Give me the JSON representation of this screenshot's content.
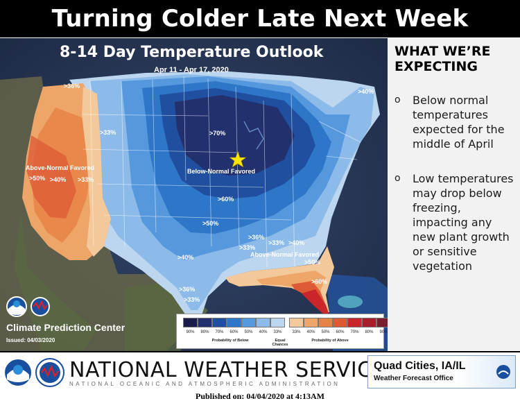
{
  "header": {
    "title": "Turning Colder Late Next Week"
  },
  "map": {
    "title": "8-14 Day Temperature Outlook",
    "date_range": "Apr 11 - Apr 17, 2020",
    "agency": "Climate Prediction Center",
    "issued": "Issued: 04/03/2020",
    "labels": {
      "above_west": "Above-Normal Favored",
      "below_central": "Below-Normal Favored",
      "above_southeast": "Above-Normal Favored",
      "p36_nw": ">36%",
      "p33_west": ">33%",
      "p50_ca": ">50%",
      "p40_ca": ">40%",
      "p33_nv": ">33%",
      "p70": ">70%",
      "p60": ">60%",
      "p50": ">50%",
      "p40_tx": ">40%",
      "p36_tx": ">36%",
      "p33_tx": ">33%",
      "p40_ne": ">40%",
      "p36_se": ">36%",
      "p33_se": ">33%",
      "p33_se2": ">33%",
      "p40_se": ">40%",
      "p50_fl": ">50%",
      "p60_fl": ">60%"
    },
    "colors": {
      "below_90": "#1c1c4a",
      "below_80": "#22306e",
      "below_70": "#1f4f9e",
      "below_60": "#2e76c8",
      "below_50": "#5698dd",
      "below_40": "#8dbbe9",
      "below_33": "#bcd6f0",
      "equal": "#f2f2f2",
      "above_33": "#f3c89a",
      "above_40": "#eea568",
      "above_50": "#e68447",
      "above_60": "#de5a35",
      "above_70": "#c9252a",
      "above_80": "#a61f2b",
      "above_90": "#7a1f2e",
      "marker": "#ffe600"
    }
  },
  "legend": {
    "values": [
      "90%",
      "80%",
      "70%",
      "60%",
      "50%",
      "40%",
      "33%",
      "33%",
      "40%",
      "50%",
      "60%",
      "70%",
      "80%",
      "90%"
    ],
    "colors": [
      "#1c1c4a",
      "#22306e",
      "#1f4f9e",
      "#2e76c8",
      "#5698dd",
      "#8dbbe9",
      "#bcd6f0",
      "#f3c89a",
      "#eea568",
      "#e68447",
      "#de5a35",
      "#c9252a",
      "#a61f2b",
      "#7a1f2e"
    ],
    "below_caption": "Probability of Below",
    "equal_caption": "Equal Chances",
    "above_caption": "Probability of Above"
  },
  "side": {
    "heading": "WHAT WE’RE EXPECTING",
    "bullet_symbol": "o",
    "bullets": [
      "Below normal temperatures expected for the middle of April",
      "Low temperatures may drop below freezing, impacting any new plant growth or sensitive vegetation"
    ]
  },
  "footer": {
    "agency": "NATIONAL WEATHER SERVICE",
    "agency_sub": "NATIONAL OCEANIC AND ATMOSPHERIC ADMINISTRATION",
    "office": "Quad Cities, IA/IL",
    "office_sub": "Weather Forecast Office",
    "published": "Published on: 04/04/2020 at 4:13AM"
  }
}
